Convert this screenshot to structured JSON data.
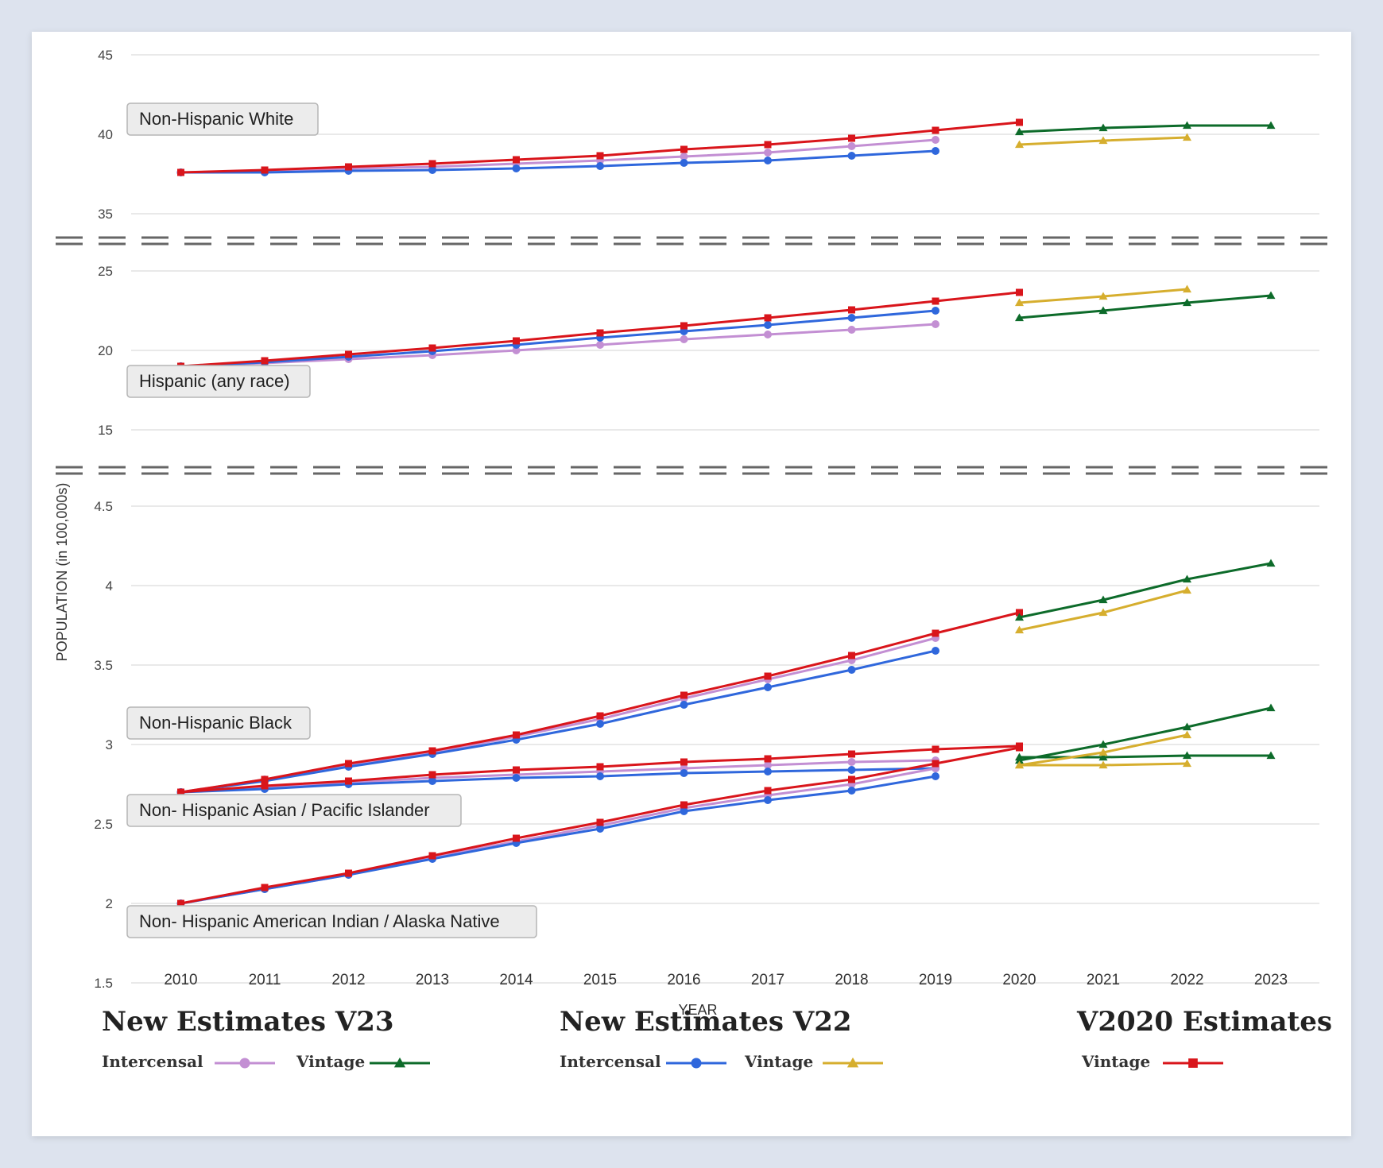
{
  "chart_data": {
    "type": "line",
    "xlabel": "YEAR",
    "ylabel": "POPULATION (in 100,000s)",
    "categories": [
      "2010",
      "2011",
      "2012",
      "2013",
      "2014",
      "2015",
      "2016",
      "2017",
      "2018",
      "2019",
      "2020",
      "2021",
      "2022",
      "2023"
    ],
    "grid": true,
    "panels": [
      {
        "ylim": [
          35,
          45
        ],
        "yticks": [
          "35",
          "40",
          "45"
        ],
        "groups": [
          {
            "label": "Non-Hispanic White",
            "series": [
              {
                "name": "New Estimates V23 Intercensal",
                "x": [
                  2010,
                  2011,
                  2012,
                  2013,
                  2014,
                  2015,
                  2016,
                  2017,
                  2018,
                  2019
                ],
                "values": [
                  37.6,
                  37.65,
                  37.85,
                  37.95,
                  38.15,
                  38.35,
                  38.6,
                  38.85,
                  39.25,
                  39.65
                ]
              },
              {
                "name": "New Estimates V22 Intercensal",
                "x": [
                  2010,
                  2011,
                  2012,
                  2013,
                  2014,
                  2015,
                  2016,
                  2017,
                  2018,
                  2019
                ],
                "values": [
                  37.6,
                  37.6,
                  37.7,
                  37.75,
                  37.85,
                  38.0,
                  38.2,
                  38.35,
                  38.65,
                  38.95
                ]
              },
              {
                "name": "V2020 Estimates Vintage",
                "x": [
                  2010,
                  2011,
                  2012,
                  2013,
                  2014,
                  2015,
                  2016,
                  2017,
                  2018,
                  2019,
                  2020
                ],
                "values": [
                  37.6,
                  37.75,
                  37.95,
                  38.15,
                  38.4,
                  38.65,
                  39.05,
                  39.35,
                  39.75,
                  40.25,
                  40.75
                ]
              },
              {
                "name": "New Estimates V23 Vintage",
                "x": [
                  2020,
                  2021,
                  2022,
                  2023
                ],
                "values": [
                  40.15,
                  40.4,
                  40.55,
                  40.55
                ]
              },
              {
                "name": "New Estimates V22 Vintage",
                "x": [
                  2020,
                  2021,
                  2022
                ],
                "values": [
                  39.35,
                  39.6,
                  39.8
                ]
              }
            ]
          }
        ]
      },
      {
        "ylim": [
          15,
          25
        ],
        "yticks": [
          "15",
          "20",
          "25"
        ],
        "groups": [
          {
            "label": "Hispanic (any race)",
            "series": [
              {
                "name": "New Estimates V23 Intercensal",
                "x": [
                  2010,
                  2011,
                  2012,
                  2013,
                  2014,
                  2015,
                  2016,
                  2017,
                  2018,
                  2019
                ],
                "values": [
                  19.0,
                  19.2,
                  19.45,
                  19.7,
                  20.0,
                  20.35,
                  20.7,
                  21.0,
                  21.3,
                  21.65
                ]
              },
              {
                "name": "New Estimates V22 Intercensal",
                "x": [
                  2010,
                  2011,
                  2012,
                  2013,
                  2014,
                  2015,
                  2016,
                  2017,
                  2018,
                  2019
                ],
                "values": [
                  19.0,
                  19.25,
                  19.6,
                  19.95,
                  20.35,
                  20.8,
                  21.2,
                  21.6,
                  22.05,
                  22.5
                ]
              },
              {
                "name": "V2020 Estimates Vintage",
                "x": [
                  2010,
                  2011,
                  2012,
                  2013,
                  2014,
                  2015,
                  2016,
                  2017,
                  2018,
                  2019,
                  2020
                ],
                "values": [
                  19.0,
                  19.35,
                  19.75,
                  20.15,
                  20.6,
                  21.1,
                  21.55,
                  22.05,
                  22.55,
                  23.1,
                  23.65
                ]
              },
              {
                "name": "New Estimates V23 Vintage",
                "x": [
                  2020,
                  2021,
                  2022,
                  2023
                ],
                "values": [
                  22.05,
                  22.5,
                  23.0,
                  23.45
                ]
              },
              {
                "name": "New Estimates V22 Vintage",
                "x": [
                  2020,
                  2021,
                  2022
                ],
                "values": [
                  23.0,
                  23.4,
                  23.85
                ]
              }
            ]
          }
        ]
      },
      {
        "ylim": [
          1.5,
          4.5
        ],
        "yticks": [
          "1.5",
          "2",
          "2.5",
          "3",
          "3.5",
          "4",
          "4.5"
        ],
        "groups": [
          {
            "label": "Non-Hispanic Black",
            "series": [
              {
                "name": "New Estimates V23 Intercensal",
                "x": [
                  2010,
                  2011,
                  2012,
                  2013,
                  2014,
                  2015,
                  2016,
                  2017,
                  2018,
                  2019
                ],
                "values": [
                  2.7,
                  2.78,
                  2.87,
                  2.95,
                  3.05,
                  3.16,
                  3.29,
                  3.41,
                  3.53,
                  3.67
                ]
              },
              {
                "name": "New Estimates V22 Intercensal",
                "x": [
                  2010,
                  2011,
                  2012,
                  2013,
                  2014,
                  2015,
                  2016,
                  2017,
                  2018,
                  2019
                ],
                "values": [
                  2.7,
                  2.77,
                  2.86,
                  2.94,
                  3.03,
                  3.13,
                  3.25,
                  3.36,
                  3.47,
                  3.59
                ]
              },
              {
                "name": "V2020 Estimates Vintage",
                "x": [
                  2010,
                  2011,
                  2012,
                  2013,
                  2014,
                  2015,
                  2016,
                  2017,
                  2018,
                  2019,
                  2020
                ],
                "values": [
                  2.7,
                  2.78,
                  2.88,
                  2.96,
                  3.06,
                  3.18,
                  3.31,
                  3.43,
                  3.56,
                  3.7,
                  3.83
                ]
              },
              {
                "name": "New Estimates V23 Vintage",
                "x": [
                  2020,
                  2021,
                  2022,
                  2023
                ],
                "values": [
                  3.8,
                  3.91,
                  4.04,
                  4.14
                ]
              },
              {
                "name": "New Estimates V22 Vintage",
                "x": [
                  2020,
                  2021,
                  2022
                ],
                "values": [
                  3.72,
                  3.83,
                  3.97
                ]
              }
            ]
          },
          {
            "label": "Non- Hispanic Asian / Pacific Islander",
            "series": [
              {
                "name": "New Estimates V23 Intercensal",
                "x": [
                  2010,
                  2011,
                  2012,
                  2013,
                  2014,
                  2015,
                  2016,
                  2017,
                  2018,
                  2019
                ],
                "values": [
                  2.7,
                  2.73,
                  2.76,
                  2.79,
                  2.81,
                  2.83,
                  2.85,
                  2.87,
                  2.89,
                  2.9
                ]
              },
              {
                "name": "New Estimates V22 Intercensal",
                "x": [
                  2010,
                  2011,
                  2012,
                  2013,
                  2014,
                  2015,
                  2016,
                  2017,
                  2018,
                  2019
                ],
                "values": [
                  2.7,
                  2.72,
                  2.75,
                  2.77,
                  2.79,
                  2.8,
                  2.82,
                  2.83,
                  2.84,
                  2.85
                ]
              },
              {
                "name": "V2020 Estimates Vintage",
                "x": [
                  2010,
                  2011,
                  2012,
                  2013,
                  2014,
                  2015,
                  2016,
                  2017,
                  2018,
                  2019,
                  2020
                ],
                "values": [
                  2.7,
                  2.74,
                  2.77,
                  2.81,
                  2.84,
                  2.86,
                  2.89,
                  2.91,
                  2.94,
                  2.97,
                  2.99
                ]
              },
              {
                "name": "New Estimates V23 Vintage",
                "x": [
                  2020,
                  2021,
                  2022,
                  2023
                ],
                "values": [
                  2.92,
                  2.92,
                  2.93,
                  2.93
                ]
              },
              {
                "name": "New Estimates V22 Vintage",
                "x": [
                  2020,
                  2021,
                  2022
                ],
                "values": [
                  2.87,
                  2.87,
                  2.88
                ]
              }
            ]
          },
          {
            "label": "Non- Hispanic American Indian / Alaska Native",
            "series": [
              {
                "name": "New Estimates V23 Intercensal",
                "x": [
                  2010,
                  2011,
                  2012,
                  2013,
                  2014,
                  2015,
                  2016,
                  2017,
                  2018,
                  2019
                ],
                "values": [
                  2.0,
                  2.09,
                  2.18,
                  2.29,
                  2.39,
                  2.49,
                  2.6,
                  2.68,
                  2.75,
                  2.85
                ]
              },
              {
                "name": "New Estimates V22 Intercensal",
                "x": [
                  2010,
                  2011,
                  2012,
                  2013,
                  2014,
                  2015,
                  2016,
                  2017,
                  2018,
                  2019
                ],
                "values": [
                  2.0,
                  2.09,
                  2.18,
                  2.28,
                  2.38,
                  2.47,
                  2.58,
                  2.65,
                  2.71,
                  2.8
                ]
              },
              {
                "name": "V2020 Estimates Vintage",
                "x": [
                  2010,
                  2011,
                  2012,
                  2013,
                  2014,
                  2015,
                  2016,
                  2017,
                  2018,
                  2019,
                  2020
                ],
                "values": [
                  2.0,
                  2.1,
                  2.19,
                  2.3,
                  2.41,
                  2.51,
                  2.62,
                  2.71,
                  2.78,
                  2.88,
                  2.98
                ]
              },
              {
                "name": "New Estimates V23 Vintage",
                "x": [
                  2020,
                  2021,
                  2022,
                  2023
                ],
                "values": [
                  2.9,
                  3.0,
                  3.11,
                  3.23
                ]
              },
              {
                "name": "New Estimates V22 Vintage",
                "x": [
                  2020,
                  2021,
                  2022
                ],
                "values": [
                  2.87,
                  2.95,
                  3.06
                ]
              }
            ]
          }
        ]
      }
    ]
  },
  "legend": {
    "groups": [
      {
        "title": "New Estimates V23",
        "items": [
          {
            "label": "Intercensal",
            "series": "New Estimates V23 Intercensal"
          },
          {
            "label": "Vintage",
            "series": "New Estimates V23 Vintage"
          }
        ]
      },
      {
        "title": "New Estimates V22",
        "items": [
          {
            "label": "Intercensal",
            "series": "New Estimates V22 Intercensal"
          },
          {
            "label": "Vintage",
            "series": "New Estimates V22 Vintage"
          }
        ]
      },
      {
        "title": "V2020 Estimates",
        "items": [
          {
            "label": "Vintage",
            "series": "V2020 Estimates Vintage"
          }
        ]
      }
    ]
  },
  "styles": {
    "New Estimates V23 Intercensal": {
      "color": "#c38fd3",
      "marker": "circle"
    },
    "New Estimates V22 Intercensal": {
      "color": "#2f67dc",
      "marker": "circle"
    },
    "V2020 Estimates Vintage": {
      "color": "#d9151b",
      "marker": "square"
    },
    "New Estimates V23 Vintage": {
      "color": "#0d6b2a",
      "marker": "triangle"
    },
    "New Estimates V22 Vintage": {
      "color": "#d6ae2e",
      "marker": "triangle"
    }
  },
  "series_order": [
    "New Estimates V23 Intercensal",
    "New Estimates V22 Intercensal",
    "V2020 Estimates Vintage",
    "New Estimates V23 Vintage",
    "New Estimates V22 Vintage"
  ]
}
